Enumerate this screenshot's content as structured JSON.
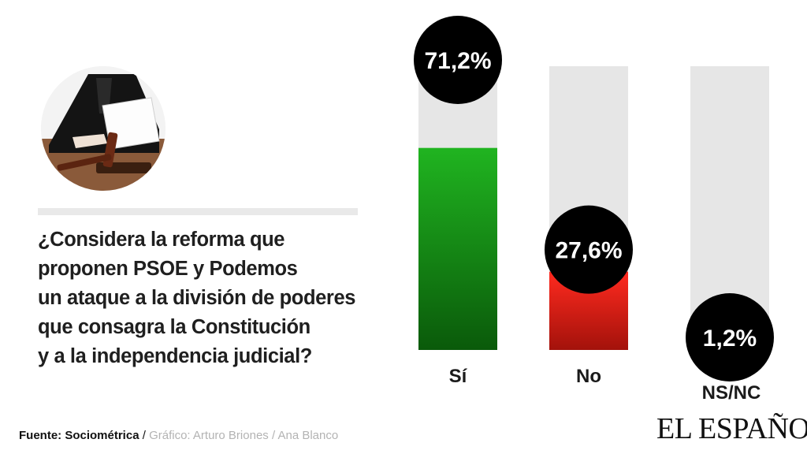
{
  "question": {
    "lines": [
      "¿Considera la reforma que",
      "proponen PSOE y Podemos",
      "un ataque a la división de poderes",
      "que consagra la Constitución",
      "y a la independencia judicial?"
    ]
  },
  "source": {
    "label": "Fuente: Sociométrica",
    "separator": " / ",
    "credits": "Gráfico: Arturo Briones / Ana Blanco"
  },
  "logo": "EL ESPAÑOL",
  "photo_icon": "judge-gavel-photo",
  "chart_data": {
    "type": "bar",
    "categories": [
      "Sí",
      "No",
      "NS/NC"
    ],
    "values": [
      71.2,
      27.6,
      1.2
    ],
    "value_labels": [
      "71,2%",
      "27,6%",
      "1,2%"
    ],
    "colors": [
      "#1a9a1a",
      "#e2291f",
      "#e6e6e6"
    ],
    "track_color": "#e6e6e6",
    "badge_color": "#000000",
    "ylim": [
      0,
      100
    ],
    "grid": false,
    "legend": "none"
  }
}
